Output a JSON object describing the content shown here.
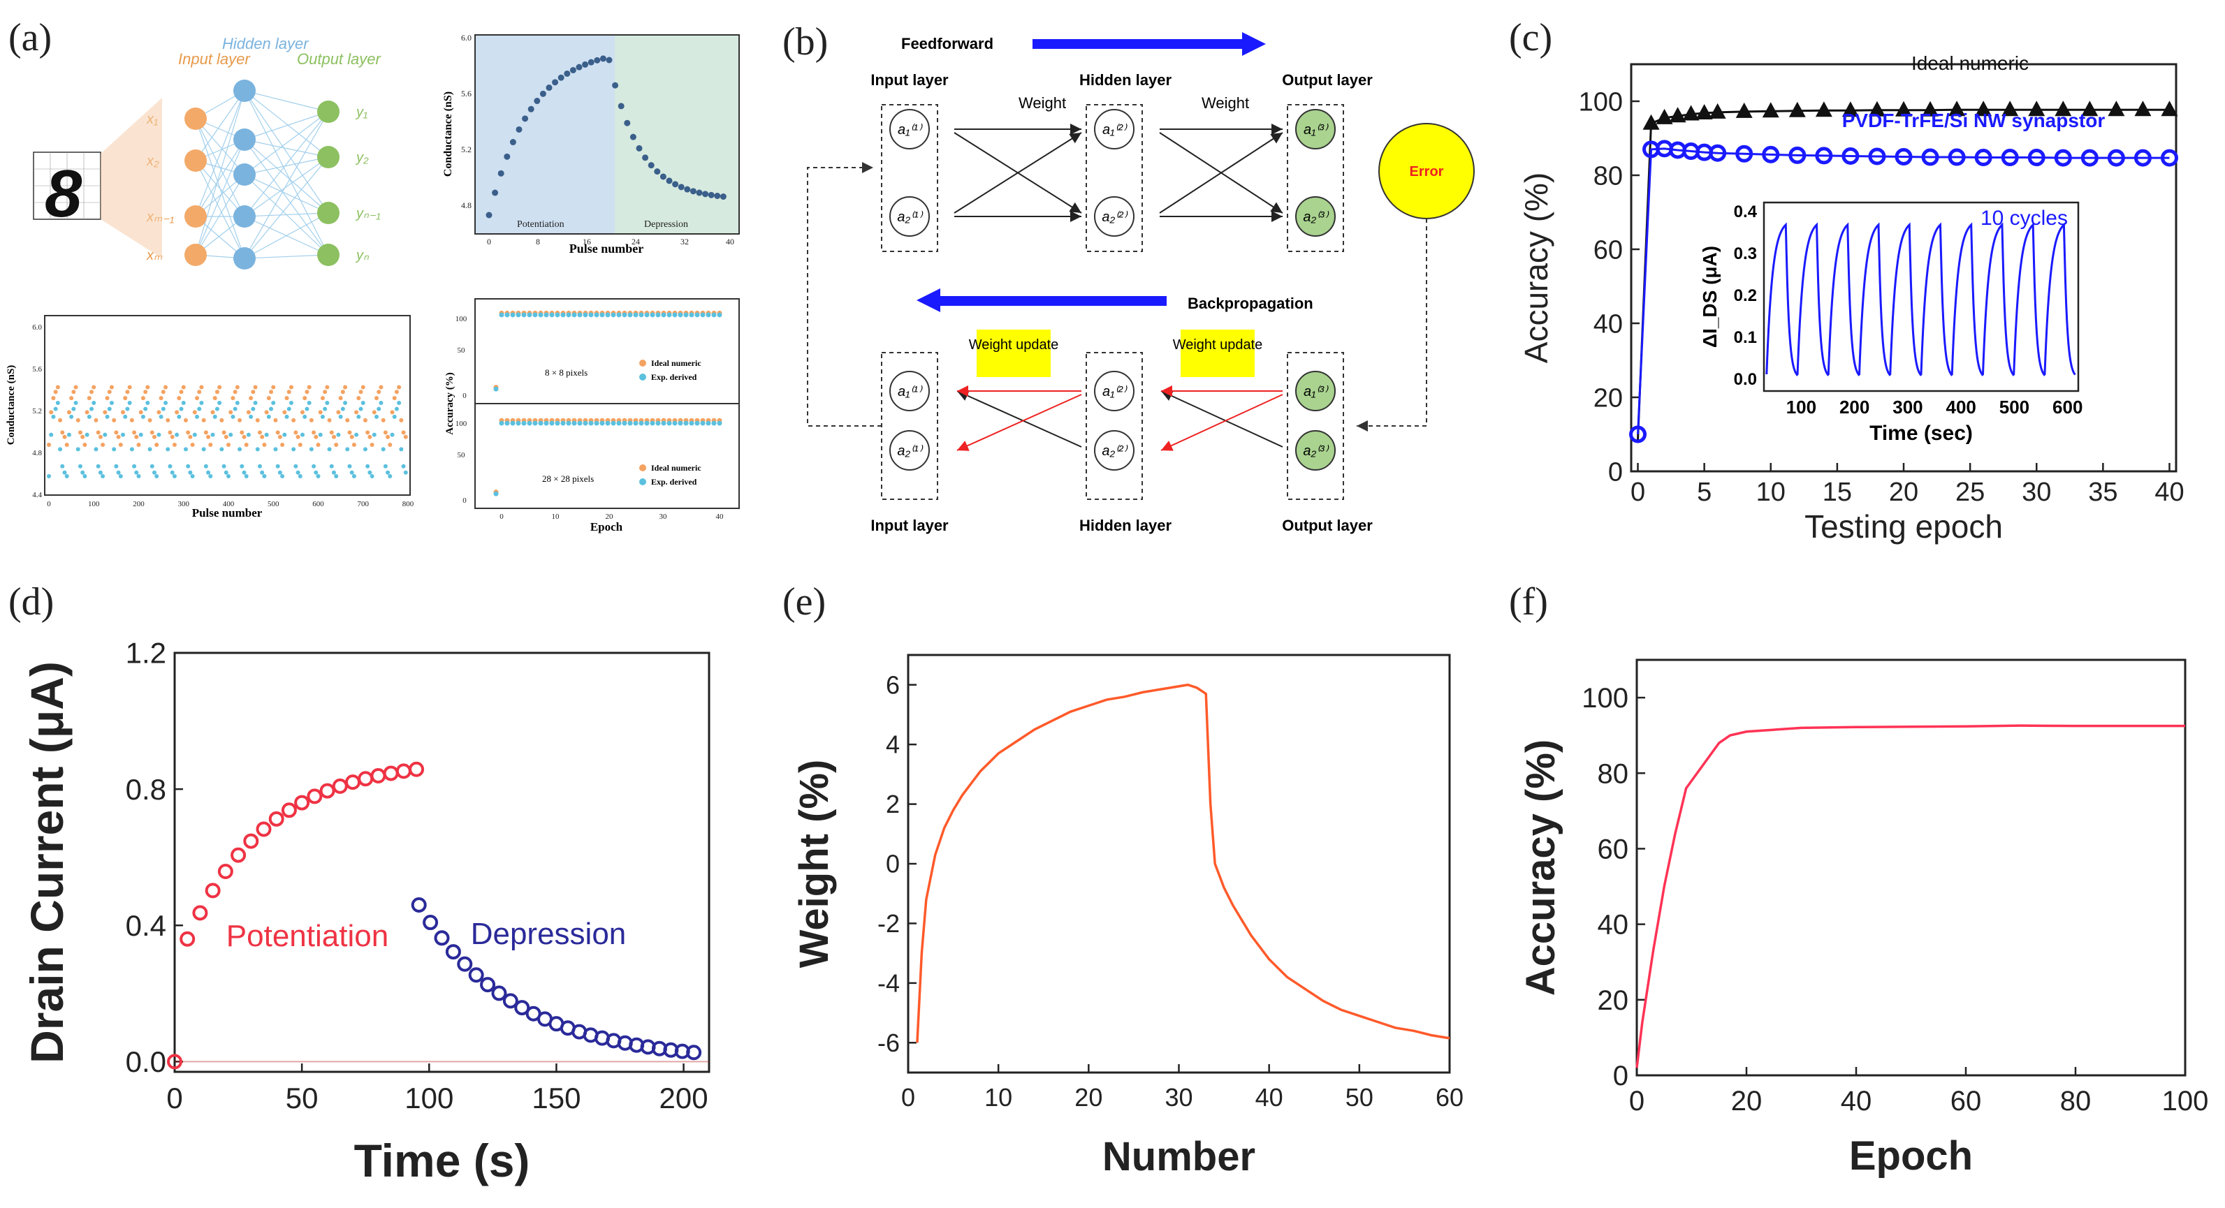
{
  "panels": {
    "a": "(a)",
    "b": "(b)",
    "c": "(c)",
    "d": "(d)",
    "e": "(e)",
    "f": "(f)"
  },
  "colors": {
    "blue": "#1a1aff",
    "red": "#ee3344",
    "navy": "#2a2a9a",
    "orange": "#ff5a2a",
    "pink": "#ff3355",
    "black": "#111111",
    "yellow": "#ffff00",
    "green": "#a9d38f"
  },
  "panel_a": {
    "network": {
      "input_label": "Input layer",
      "hidden_label": "Hidden layer",
      "output_label": "Output layer",
      "input_nodes": [
        "x₁",
        "x₂",
        "xₘ₋₁",
        "xₘ"
      ],
      "output_nodes": [
        "y₁",
        "y₂",
        "yₙ₋₁",
        "yₙ"
      ],
      "digit": "8"
    },
    "conductance_plot": {
      "ylabel": "Conductance (nS)",
      "xlabel": "Pulse number",
      "yticks": [
        "4.8",
        "5.2",
        "5.6",
        "6.0"
      ],
      "xticks": [
        "0",
        "8",
        "16",
        "24",
        "32",
        "40"
      ],
      "region1": "Potentiation",
      "region2": "Depression"
    },
    "cycling_plot": {
      "ylabel": "Conductance (nS)",
      "xlabel": "Pulse number",
      "yticks": [
        "4.4",
        "4.8",
        "5.2",
        "5.6",
        "6.0"
      ],
      "xticks": [
        "0",
        "100",
        "200",
        "300",
        "400",
        "500",
        "600",
        "700",
        "800"
      ]
    },
    "accuracy_plot": {
      "ylabel": "Accuracy (%)",
      "xlabel": "Epoch",
      "label_8": "8 × 8 pixels",
      "label_28": "28 × 28 pixels",
      "legend1": "Ideal numeric",
      "legend2": "Exp. derived",
      "xticks": [
        "0",
        "10",
        "20",
        "30",
        "40"
      ],
      "yticks": [
        "0",
        "50",
        "100"
      ]
    }
  },
  "panel_b": {
    "feedforward": "Feedforward",
    "backpropagation": "Backpropagation",
    "input_layer": "Input layer",
    "hidden_layer": "Hidden layer",
    "output_layer": "Output layer",
    "weight": "Weight",
    "error": "Error",
    "weight_update": "Weight update",
    "top_input": [
      "a₁⁽¹⁾",
      "a₂⁽¹⁾"
    ],
    "top_hidden": [
      "a₁⁽²⁾",
      "a₂⁽²⁾"
    ],
    "top_output": [
      "a₁⁽³⁾",
      "a₂⁽³⁾"
    ]
  },
  "chart_data": [
    {
      "id": "c",
      "type": "line",
      "xlabel": "Testing epoch",
      "ylabel": "Accuracy (%)",
      "xlim": [
        -0.5,
        40.5
      ],
      "ylim": [
        0,
        110
      ],
      "xticks": [
        0,
        5,
        10,
        15,
        20,
        25,
        30,
        35,
        40
      ],
      "yticks": [
        0,
        20,
        40,
        60,
        80,
        100
      ],
      "series": [
        {
          "name": "Ideal numeric",
          "x": [
            0,
            1,
            2,
            3,
            4,
            5,
            6,
            8,
            10,
            12,
            14,
            16,
            18,
            20,
            22,
            24,
            26,
            28,
            30,
            32,
            34,
            36,
            38,
            40
          ],
          "y": [
            8.5,
            94,
            95.5,
            96,
            96.5,
            96.8,
            97,
            97.2,
            97.3,
            97.4,
            97.5,
            97.5,
            97.6,
            97.6,
            97.6,
            97.7,
            97.7,
            97.7,
            97.7,
            97.7,
            97.7,
            97.7,
            97.7,
            97.7
          ]
        },
        {
          "name": "PVDF-TrFE/Si NW synapstor",
          "x": [
            0,
            1,
            2,
            3,
            4,
            5,
            6,
            8,
            10,
            12,
            14,
            16,
            18,
            20,
            22,
            24,
            26,
            28,
            30,
            32,
            34,
            36,
            38,
            40
          ],
          "y": [
            10,
            87,
            87.2,
            86.8,
            86.5,
            86.2,
            86,
            85.8,
            85.6,
            85.4,
            85.3,
            85.2,
            85.1,
            85,
            84.9,
            84.9,
            84.8,
            84.8,
            84.8,
            84.7,
            84.7,
            84.7,
            84.7,
            84.7
          ]
        }
      ],
      "inset": {
        "xlabel": "Time (sec)",
        "ylabel": "ΔI_DS (μA)",
        "label": "10 cycles",
        "cycles": 10,
        "xlim": [
          30,
          620
        ],
        "ylim": [
          -0.03,
          0.42
        ],
        "xticks": [
          100,
          200,
          300,
          400,
          500,
          600
        ],
        "yticks": [
          0.0,
          0.1,
          0.2,
          0.3,
          0.4
        ]
      }
    },
    {
      "id": "d",
      "type": "scatter",
      "xlabel": "Time (s)",
      "ylabel": "Drain Current (μA)",
      "xlim": [
        0,
        210
      ],
      "ylim": [
        -0.03,
        1.2
      ],
      "xticks": [
        0,
        50,
        100,
        150,
        200
      ],
      "yticks": [
        0.0,
        0.4,
        0.8,
        1.2
      ],
      "series": [
        {
          "name": "Potentiation",
          "x0": 0,
          "x1": 95,
          "y0": 0.0,
          "y_first": 0.36,
          "y_end": 0.89,
          "tau": 32
        },
        {
          "name": "Depression",
          "x0": 96,
          "x1": 205,
          "y_first": 0.46,
          "y_end": 0.0,
          "tau": 38
        }
      ]
    },
    {
      "id": "e",
      "type": "line",
      "xlabel": "Number",
      "ylabel": "Weight (%)",
      "xlim": [
        0,
        60
      ],
      "ylim": [
        -7,
        7
      ],
      "xticks": [
        0,
        10,
        20,
        30,
        40,
        50,
        60
      ],
      "yticks": [
        -6,
        -4,
        -2,
        0,
        2,
        4,
        6
      ],
      "series": [
        {
          "name": "Weight",
          "x": [
            1,
            1.5,
            2,
            3,
            4,
            5,
            6,
            8,
            10,
            12,
            14,
            16,
            18,
            20,
            22,
            24,
            26,
            28,
            30,
            31,
            32,
            33,
            33.5,
            34,
            35,
            36,
            38,
            40,
            42,
            44,
            46,
            48,
            50,
            52,
            54,
            56,
            58,
            60
          ],
          "y": [
            -6,
            -3,
            -1.2,
            0.3,
            1.2,
            1.8,
            2.3,
            3.1,
            3.7,
            4.1,
            4.5,
            4.8,
            5.1,
            5.3,
            5.5,
            5.6,
            5.75,
            5.85,
            5.95,
            6.0,
            5.9,
            5.7,
            2.0,
            0.0,
            -0.8,
            -1.4,
            -2.4,
            -3.2,
            -3.8,
            -4.2,
            -4.6,
            -4.9,
            -5.1,
            -5.3,
            -5.5,
            -5.6,
            -5.75,
            -5.85
          ]
        }
      ]
    },
    {
      "id": "f",
      "type": "line",
      "xlabel": "Epoch",
      "ylabel": "Accuracy (%)",
      "xlim": [
        0,
        100
      ],
      "ylim": [
        0,
        110
      ],
      "xticks": [
        0,
        20,
        40,
        60,
        80,
        100
      ],
      "yticks": [
        0,
        20,
        40,
        60,
        80,
        100
      ],
      "series": [
        {
          "name": "Accuracy",
          "x": [
            0,
            1,
            3,
            5,
            7,
            9,
            11,
            13,
            15,
            17,
            20,
            25,
            30,
            40,
            50,
            60,
            70,
            80,
            90,
            100
          ],
          "y": [
            2,
            14,
            33,
            50,
            64,
            76,
            80,
            84,
            88,
            90,
            91,
            91.5,
            92,
            92.2,
            92.3,
            92.4,
            92.6,
            92.5,
            92.5,
            92.5
          ]
        }
      ]
    }
  ]
}
